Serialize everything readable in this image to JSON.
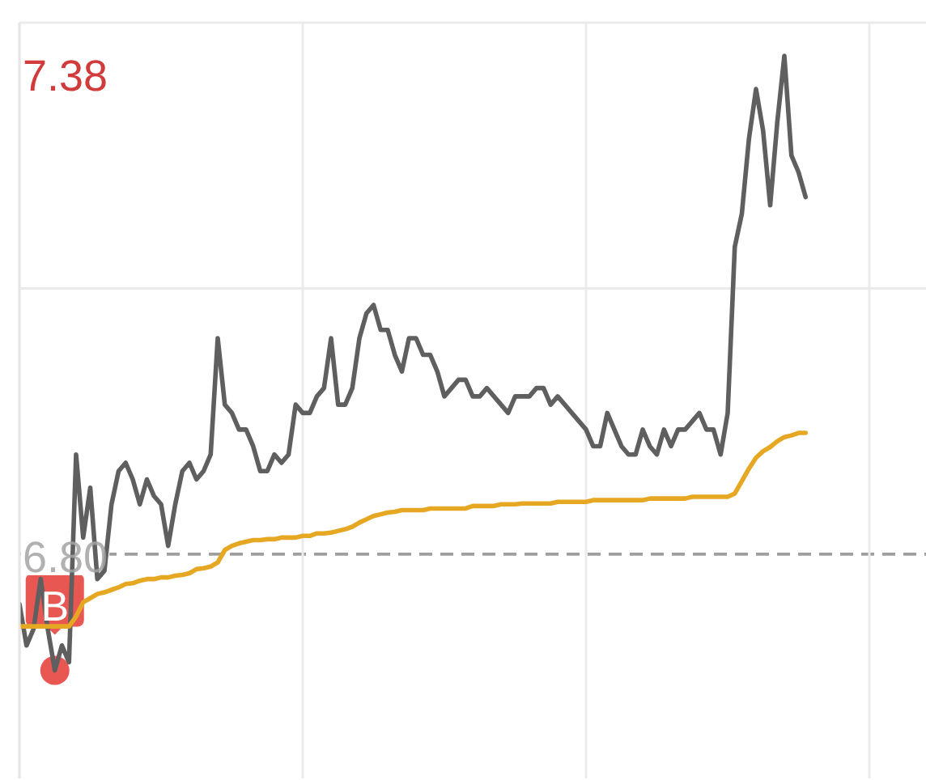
{
  "chart_data": {
    "type": "line",
    "categories": [
      null,
      null,
      null,
      null,
      null,
      null,
      null,
      null,
      null,
      null,
      null,
      null,
      null,
      null,
      null,
      null,
      null,
      null,
      null,
      null,
      null,
      null,
      null,
      null,
      null,
      null,
      null,
      null,
      null,
      null,
      null,
      null,
      null,
      null,
      null,
      null,
      null,
      null,
      null,
      null,
      null,
      null,
      null,
      null,
      null,
      null,
      null,
      null,
      null,
      null,
      null,
      null,
      null,
      null,
      null,
      null,
      null,
      null,
      null,
      null,
      null,
      null,
      null,
      null,
      null,
      null,
      null,
      null,
      null,
      null,
      null,
      null,
      null,
      null,
      null,
      null,
      null,
      null,
      null,
      null,
      null,
      null,
      null,
      null,
      null,
      null,
      null,
      null,
      null,
      null,
      null,
      null,
      null,
      null,
      null,
      null,
      null,
      null,
      null,
      null,
      null,
      null,
      null,
      null,
      null,
      null,
      null,
      null,
      null,
      null,
      null,
      null,
      null,
      null,
      null,
      null,
      null,
      null,
      null,
      null,
      null,
      null,
      null,
      null,
      null,
      null,
      null,
      null,
      null
    ],
    "series": [
      {
        "color": "#5f5f5f",
        "values": [
          6.74,
          6.69,
          6.71,
          6.77,
          6.71,
          6.66,
          6.69,
          6.67,
          6.92,
          6.82,
          6.88,
          6.77,
          6.78,
          6.86,
          6.9,
          6.91,
          6.89,
          6.86,
          6.89,
          6.87,
          6.86,
          6.81,
          6.86,
          6.9,
          6.91,
          6.89,
          6.9,
          6.92,
          7.06,
          6.98,
          6.97,
          6.95,
          6.95,
          6.93,
          6.9,
          6.9,
          6.92,
          6.91,
          6.92,
          6.98,
          6.97,
          6.97,
          6.99,
          7.0,
          7.06,
          6.98,
          6.98,
          7.0,
          7.06,
          7.09,
          7.1,
          7.07,
          7.07,
          7.04,
          7.02,
          7.06,
          7.06,
          7.04,
          7.04,
          7.02,
          6.99,
          7.0,
          7.01,
          7.01,
          6.99,
          6.99,
          7.0,
          6.99,
          6.98,
          6.97,
          6.99,
          6.99,
          6.99,
          7.0,
          7.0,
          6.98,
          6.99,
          6.98,
          6.97,
          6.96,
          6.95,
          6.93,
          6.93,
          6.97,
          6.95,
          6.93,
          6.92,
          6.92,
          6.95,
          6.93,
          6.92,
          6.95,
          6.93,
          6.95,
          6.95,
          6.96,
          6.97,
          6.95,
          6.95,
          6.92,
          6.97,
          7.17,
          7.21,
          7.3,
          7.36,
          7.31,
          7.22,
          7.32,
          7.4,
          7.28,
          7.26,
          7.23,
          null,
          null,
          null,
          null,
          null,
          null,
          null,
          null,
          null,
          null,
          null,
          null,
          null,
          null,
          null,
          null,
          null
        ]
      },
      {
        "color": "#e6a823",
        "values": [
          6.713,
          6.713,
          6.713,
          6.713,
          6.713,
          6.713,
          6.713,
          6.713,
          6.725,
          6.742,
          6.747,
          6.752,
          6.754,
          6.757,
          6.76,
          6.764,
          6.765,
          6.768,
          6.77,
          6.77,
          6.772,
          6.772,
          6.774,
          6.775,
          6.777,
          6.782,
          6.783,
          6.785,
          6.79,
          6.805,
          6.81,
          6.813,
          6.815,
          6.817,
          6.817,
          6.818,
          6.818,
          6.82,
          6.82,
          6.82,
          6.822,
          6.822,
          6.825,
          6.825,
          6.826,
          6.828,
          6.83,
          6.833,
          6.838,
          6.842,
          6.846,
          6.848,
          6.85,
          6.851,
          6.853,
          6.853,
          6.853,
          6.853,
          6.855,
          6.855,
          6.855,
          6.855,
          6.855,
          6.855,
          6.858,
          6.858,
          6.858,
          6.858,
          6.86,
          6.86,
          6.86,
          6.861,
          6.861,
          6.861,
          6.861,
          6.861,
          6.863,
          6.863,
          6.863,
          6.863,
          6.863,
          6.865,
          6.865,
          6.865,
          6.865,
          6.865,
          6.865,
          6.865,
          6.865,
          6.867,
          6.867,
          6.867,
          6.867,
          6.867,
          6.867,
          6.869,
          6.869,
          6.869,
          6.869,
          6.869,
          6.869,
          6.873,
          6.888,
          6.903,
          6.916,
          6.924,
          6.929,
          6.936,
          6.941,
          6.943,
          6.946,
          6.946,
          null,
          null,
          null,
          null,
          null,
          null,
          null,
          null,
          null,
          null,
          null,
          null,
          null,
          null,
          null,
          null,
          null
        ]
      }
    ],
    "ylim": [
      6.53,
      7.44
    ],
    "yticks": [
      {
        "value": 6.8,
        "label": "6.80"
      },
      {
        "value": 7.12,
        "label": null
      },
      7.38
    ],
    "ref_lines": [
      {
        "axis": "y",
        "value": 6.8,
        "color": "#9e9e9e",
        "line_style": "dashed"
      }
    ],
    "annotations": [
      {
        "text": "B",
        "y": 6.66
      }
    ],
    "grid": true,
    "tick_labels": "y"
  }
}
